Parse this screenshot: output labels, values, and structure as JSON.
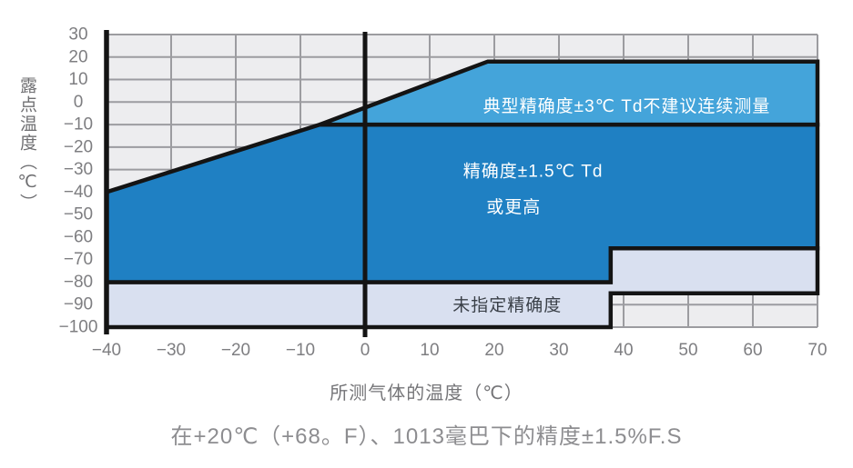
{
  "chart_data": {
    "type": "area",
    "title": "",
    "xlabel": "所测气体的温度（℃）",
    "ylabel": "露点温度（℃）",
    "caption": "在+20℃（+68。F）、1013毫巴下的精度±1.5%F.S",
    "xlim": [
      -40,
      70
    ],
    "ylim": [
      -100,
      30
    ],
    "x_ticks": [
      -40,
      -30,
      -20,
      -10,
      0,
      10,
      20,
      30,
      40,
      50,
      60,
      70
    ],
    "y_ticks": [
      30,
      20,
      10,
      0,
      -10,
      -20,
      -30,
      -40,
      -50,
      -60,
      -70,
      -80,
      -90,
      -100
    ],
    "grid": true,
    "legend": "none",
    "emphasized_x_line": 0,
    "colors": {
      "plot_background": "#EDEDEF",
      "gridline": "#9C9CA0",
      "outline": "#141414",
      "tick_text": "#7E7E81",
      "typical_region": "#44A4DA",
      "accuracy_region": "#1F80C3",
      "unspecified_region": "#D9E0F0"
    },
    "regions": [
      {
        "name": "unspecified-accuracy",
        "color": "#D9E0F0",
        "points": [
          [
            -40,
            -80
          ],
          [
            38,
            -80
          ],
          [
            38,
            -65
          ],
          [
            70,
            -65
          ],
          [
            70,
            -85
          ],
          [
            38,
            -85
          ],
          [
            38,
            -100
          ],
          [
            -40,
            -100
          ]
        ],
        "labels": [
          {
            "text": "未指定精确度",
            "x": 22,
            "y": -90.5,
            "color": "#3A4048"
          }
        ]
      },
      {
        "name": "high-accuracy",
        "color": "#1F80C3",
        "points": [
          [
            -40,
            -40
          ],
          [
            -7,
            -10
          ],
          [
            70,
            -10
          ],
          [
            70,
            -65
          ],
          [
            38,
            -65
          ],
          [
            38,
            -80
          ],
          [
            -40,
            -80
          ]
        ],
        "labels": [
          {
            "text": "精确度±1.5℃ Td",
            "x": 26,
            "y": -31,
            "color": "#FFFFFF"
          },
          {
            "text": "或更高",
            "x": 23,
            "y": -47,
            "color": "#FFFFFF"
          }
        ]
      },
      {
        "name": "typical-accuracy",
        "color": "#44A4DA",
        "points": [
          [
            -7,
            -10
          ],
          [
            19,
            18
          ],
          [
            70,
            18
          ],
          [
            70,
            -10
          ]
        ],
        "labels": [
          {
            "text": "典型精确度±3℃ Td不建议连续测量",
            "x": 40.5,
            "y": -2,
            "color": "#FFFFFF"
          }
        ]
      }
    ]
  }
}
